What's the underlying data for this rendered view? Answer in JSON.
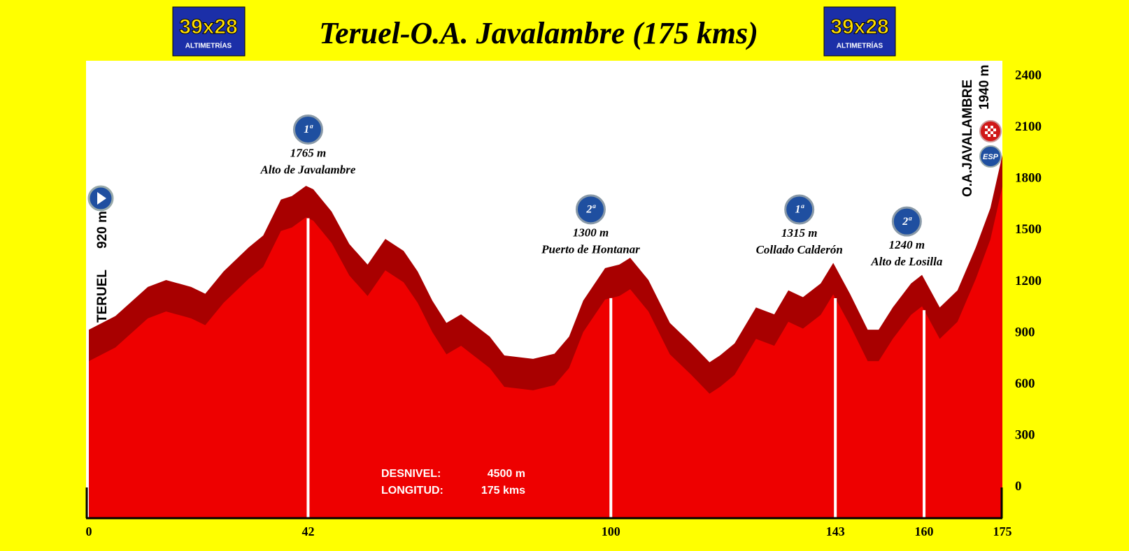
{
  "chart_data": {
    "type": "area",
    "title": "Teruel-O.A. Javalambre (175 kms)",
    "logo": {
      "brand": "39x28",
      "subtitle": "ALTIMETRÍAS"
    },
    "x": [
      0,
      5.1,
      11.3,
      14.8,
      19.6,
      22.3,
      25.8,
      30.6,
      33.4,
      36.8,
      38.9,
      41.6,
      43.0,
      46.5,
      49.9,
      53.4,
      56.8,
      60.3,
      63.0,
      65.8,
      68.5,
      71.3,
      73.4,
      76.8,
      79.6,
      85.1,
      89.2,
      92.0,
      94.7,
      98.9,
      101.6,
      103.7,
      107.2,
      111.3,
      115.4,
      118.9,
      120.9,
      123.7,
      127.8,
      131.3,
      134.0,
      136.8,
      140.2,
      142.6,
      145.8,
      149.2,
      151.3,
      154.0,
      157.5,
      159.6,
      163.0,
      166.4,
      169.9,
      172.7,
      175
    ],
    "values": [
      920,
      1000,
      1170,
      1210,
      1170,
      1130,
      1260,
      1400,
      1470,
      1680,
      1700,
      1760,
      1740,
      1610,
      1420,
      1300,
      1450,
      1380,
      1260,
      1090,
      960,
      1010,
      960,
      880,
      770,
      750,
      780,
      880,
      1090,
      1280,
      1300,
      1340,
      1210,
      960,
      840,
      730,
      770,
      840,
      1050,
      1010,
      1150,
      1110,
      1190,
      1310,
      1130,
      920,
      920,
      1050,
      1190,
      1240,
      1050,
      1150,
      1400,
      1630,
      1940
    ],
    "color": "#ee0000",
    "shade_color": "#a80000",
    "xlim": [
      0,
      175
    ],
    "xticks": [
      0,
      42,
      100,
      143,
      160,
      175
    ],
    "ylim": [
      -180,
      2490
    ],
    "yticks": [
      0,
      300,
      600,
      900,
      1200,
      1500,
      1800,
      2100,
      2400
    ],
    "grid": false,
    "start": {
      "name": "TERUEL",
      "altitude": "920 m"
    },
    "finish": {
      "name": "O.A.JAVALAMBRE",
      "altitude": "1940 m",
      "category": "ESP"
    },
    "climbs": [
      {
        "km": 42,
        "category": "1ª",
        "altitude": "1765 m",
        "name": "Alto de Javalambre"
      },
      {
        "km": 100,
        "category": "2ª",
        "altitude": "1300 m",
        "name": "Puerto de Hontanar"
      },
      {
        "km": 143,
        "category": "1ª",
        "altitude": "1315 m",
        "name": "Collado Calderón"
      },
      {
        "km": 160,
        "category": "2ª",
        "altitude": "1240 m",
        "name": "Alto de Losilla"
      }
    ],
    "stats": [
      {
        "label": "DESNIVEL:",
        "value": "4500 m"
      },
      {
        "label": "LONGITUD:",
        "value": "175 kms"
      }
    ]
  }
}
